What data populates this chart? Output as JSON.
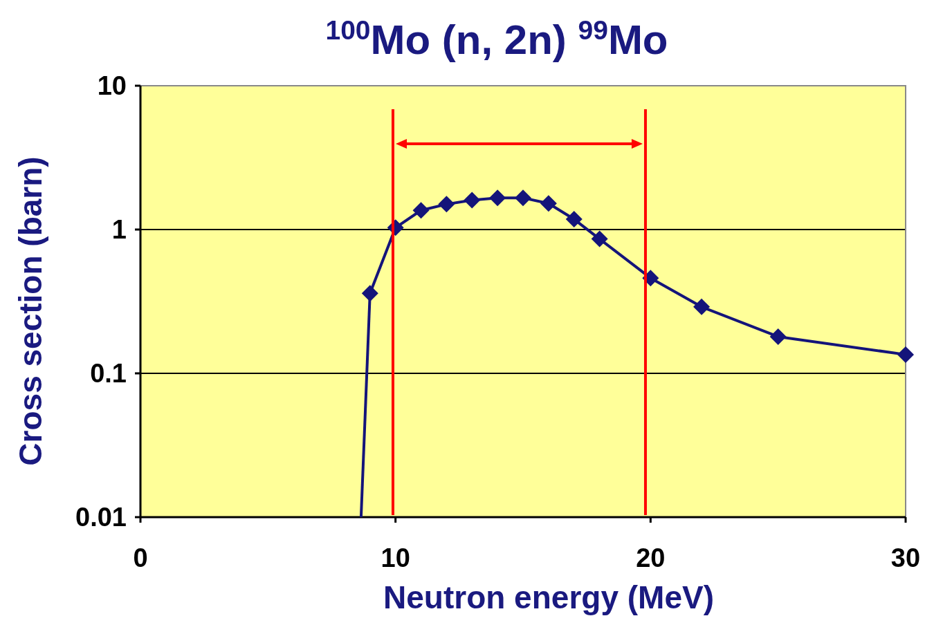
{
  "chart_data": {
    "type": "line",
    "title": "$^{100}$Mo (n, 2n)  $^{99}$Mo",
    "xlabel": "Neutron energy  (MeV)",
    "ylabel": "Cross section  (barn)",
    "series": [
      {
        "color": "#14147a",
        "x": [
          8.65,
          9
        ],
        "values": [
          0.01,
          0.36
        ]
      },
      {
        "color": "#14147a",
        "marker": "diamond",
        "x": [
          9,
          10,
          11,
          12,
          13,
          14,
          15,
          16,
          17,
          18,
          20,
          22,
          25,
          30
        ],
        "values": [
          0.36,
          1.03,
          1.36,
          1.5,
          1.6,
          1.66,
          1.66,
          1.52,
          1.18,
          0.86,
          0.46,
          0.29,
          0.18,
          0.135
        ]
      }
    ],
    "xlim": [
      0,
      30
    ],
    "xticks": [
      0,
      10,
      20,
      30
    ],
    "ylim": [
      0.01,
      10
    ],
    "yticks": [
      0.01,
      0.1,
      1,
      10
    ],
    "log": "y",
    "grid": "y",
    "ref_lines": [
      {
        "axis": "x",
        "value": 9.9,
        "color": "#ff0000"
      },
      {
        "axis": "x",
        "value": 19.8,
        "color": "#ff0000"
      }
    ]
  }
}
